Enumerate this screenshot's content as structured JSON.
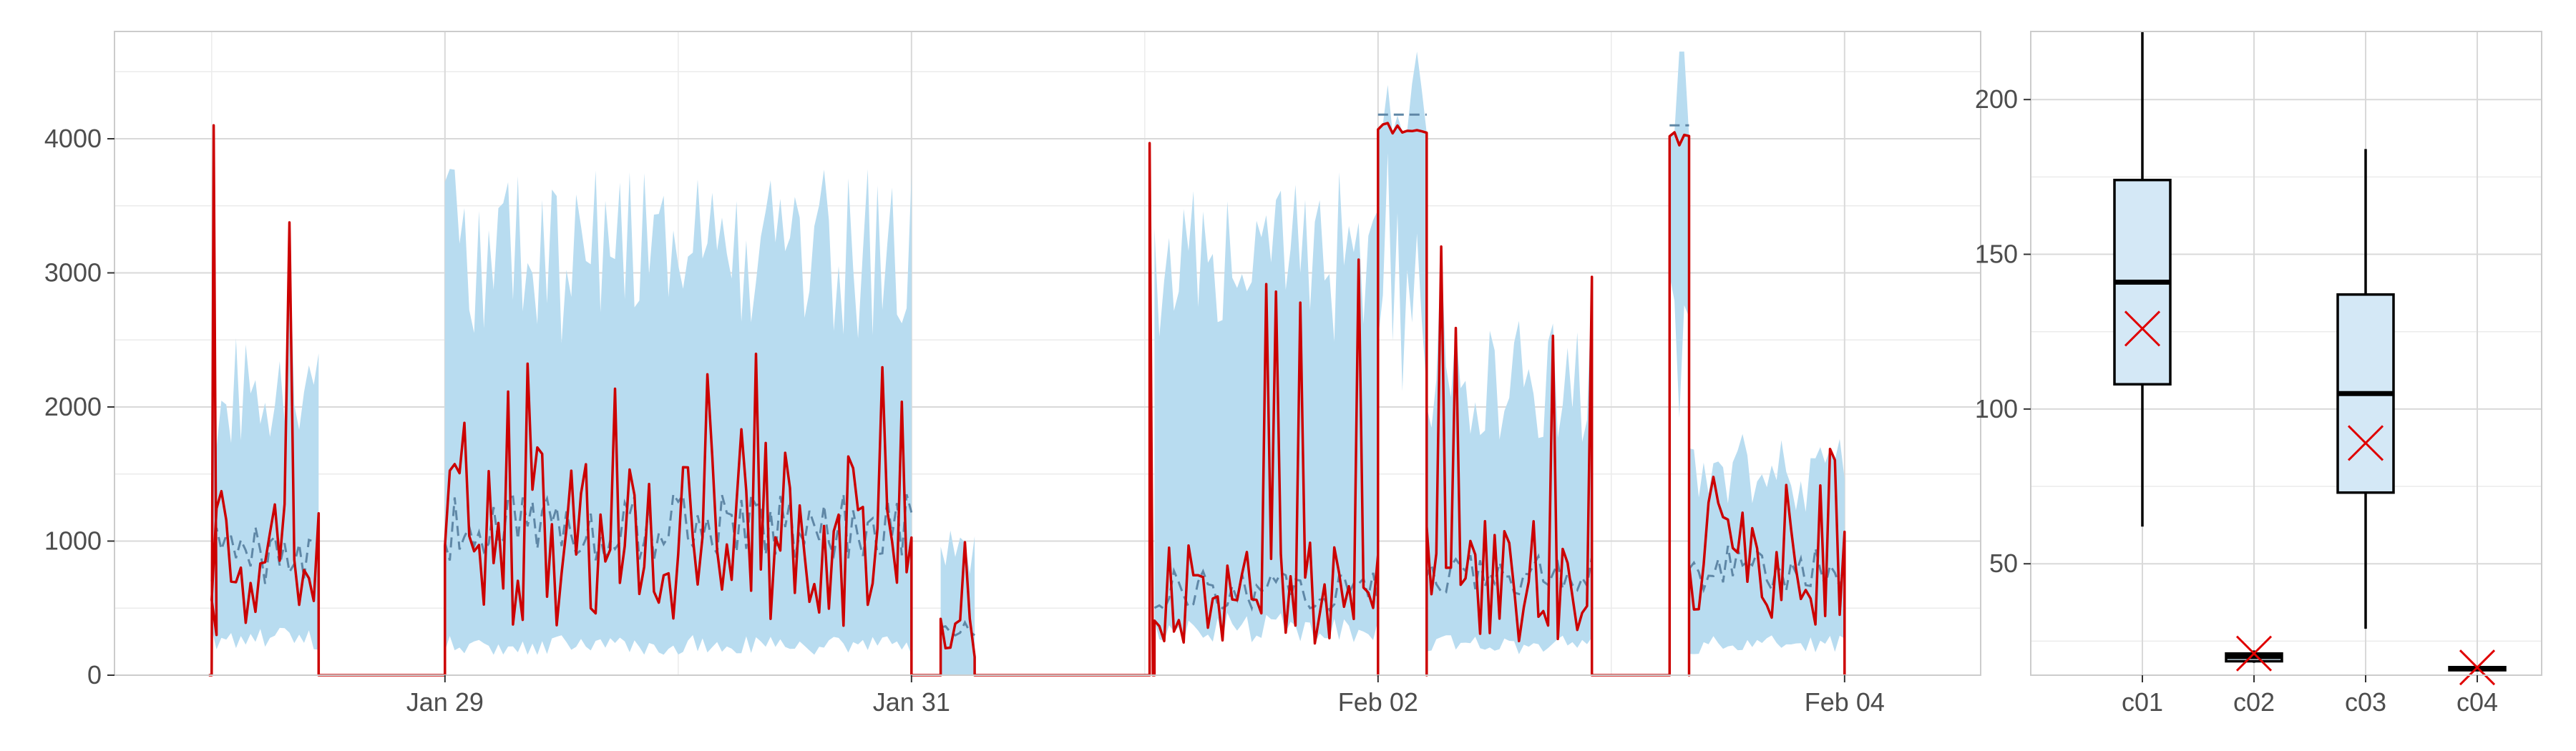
{
  "colors": {
    "forecast_band": "#b8dcf0",
    "forecast_median": "#5f87a6",
    "actual": "#cc0000",
    "box_fill": "#d4e8f6",
    "box_stroke": "#000000",
    "mean_marker": "#e00000",
    "grid_major": "#d9d9d9",
    "grid_minor": "#ebebeb",
    "panel_border": "#cccccc"
  },
  "chart_data": [
    {
      "type": "line",
      "title": "",
      "xlabel": "",
      "ylabel": "",
      "x_axis": {
        "kind": "date",
        "range": [
          "2023-01-27T14:00",
          "2023-02-04T14:00"
        ],
        "tick_labels": [
          "Jan 29",
          "Jan 31",
          "Feb 02",
          "Feb 04"
        ],
        "tick_dates": [
          "2023-01-29",
          "2023-01-31",
          "2023-02-02",
          "2023-02-04"
        ]
      },
      "ylim": [
        0,
        4800
      ],
      "y_tick_labels": [
        "0",
        "1000",
        "2000",
        "3000",
        "4000"
      ],
      "y_ticks": [
        0,
        1000,
        2000,
        3000,
        4000
      ],
      "grid": true,
      "legend": "none",
      "segments": [
        {
          "start": "2023-01-28T00:00",
          "end": "2023-01-28T11:00",
          "level": 850,
          "peak": 4100,
          "band_high": 2200,
          "band_low": 300
        },
        {
          "start": "2023-01-29T00:00",
          "end": "2023-01-31T00:00",
          "level": 1050,
          "peak": 2400,
          "band_high": 3300,
          "band_low": 250
        },
        {
          "start": "2023-01-31T03:00",
          "end": "2023-01-31T06:30",
          "level": 350,
          "peak": 1000,
          "band_high": 950,
          "band_low": 0
        },
        {
          "start": "2023-02-01T00:30",
          "end": "2023-02-01T00:50",
          "level": 4000,
          "peak": 4050,
          "band_high": 4550,
          "band_low": 3600
        },
        {
          "start": "2023-02-01T01:00",
          "end": "2023-02-02T00:00",
          "level": 600,
          "peak": 3100,
          "band_high": 3300,
          "band_low": 400
        },
        {
          "start": "2023-02-02T00:00",
          "end": "2023-02-02T05:00",
          "level": 4080,
          "peak": 4100,
          "band_high": 4650,
          "band_low": 3500
        },
        {
          "start": "2023-02-02T05:00",
          "end": "2023-02-02T22:00",
          "level": 700,
          "peak": 3200,
          "band_high": 2300,
          "band_low": 250
        },
        {
          "start": "2023-02-03T06:00",
          "end": "2023-02-03T08:00",
          "level": 4000,
          "peak": 4050,
          "band_high": 4700,
          "band_low": 3000
        },
        {
          "start": "2023-02-03T08:00",
          "end": "2023-02-04T00:00",
          "level": 750,
          "peak": 1700,
          "band_high": 1600,
          "band_low": 250
        }
      ],
      "series": [
        {
          "role": "forecast interval",
          "style": "band"
        },
        {
          "role": "forecast median",
          "style": "dashed"
        },
        {
          "role": "actual",
          "style": "solid"
        }
      ]
    },
    {
      "type": "box",
      "title": "",
      "xlabel": "",
      "ylabel": "",
      "categories": [
        "c01",
        "c02",
        "c03",
        "c04"
      ],
      "y_tick_labels": [
        "50",
        "100",
        "150",
        "200"
      ],
      "y_ticks": [
        50,
        100,
        150,
        200
      ],
      "ylim": [
        14,
        222
      ],
      "grid": true,
      "boxes": [
        {
          "category": "c01",
          "whisker_low": 62,
          "q1": 108,
          "median": 141,
          "q3": 174,
          "whisker_high": 222,
          "mean": 126
        },
        {
          "category": "c02",
          "whisker_low": 18,
          "q1": 18.5,
          "median": 20,
          "q3": 21,
          "whisker_high": 22,
          "mean": 21
        },
        {
          "category": "c03",
          "whisker_low": 29,
          "q1": 73,
          "median": 105,
          "q3": 137,
          "whisker_high": 184,
          "mean": 89
        },
        {
          "category": "c04",
          "whisker_low": 15.5,
          "q1": 15.6,
          "median": 16.2,
          "q3": 16.6,
          "whisker_high": 17,
          "mean": 16.5
        }
      ]
    }
  ]
}
